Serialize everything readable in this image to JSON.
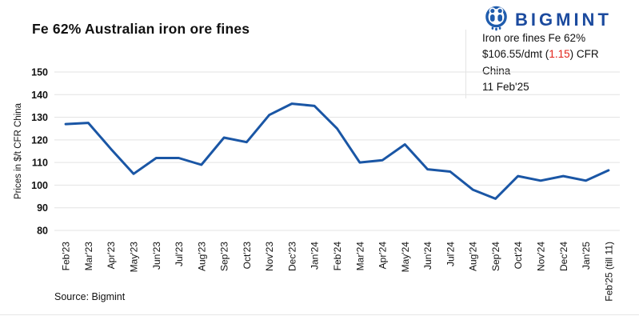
{
  "header": {
    "title": "Fe 62% Australian iron ore fines",
    "logo_text": "BIGMINT",
    "annotation": {
      "line1": "Iron ore fines Fe 62%",
      "price_prefix": "$106.55/dmt (",
      "price_change": "1.15",
      "price_suffix": ") CFR China",
      "date": "11 Feb'25"
    }
  },
  "footer": {
    "source": "Source: Bigmint"
  },
  "colors": {
    "line": "#1a56a5",
    "logo_blue": "#1b4a9e",
    "icon_blue": "#1f5cad",
    "change_red": "#e2231a",
    "grid": "#e3e3e3",
    "text": "#111111"
  },
  "chart_data": {
    "type": "line",
    "title": "Fe 62% Australian iron ore fines",
    "xlabel": "",
    "ylabel": "Prices in $/t CFR China",
    "ylim": [
      80,
      150
    ],
    "ytick_step": 10,
    "yticks": [
      80,
      90,
      100,
      110,
      120,
      130,
      140,
      150
    ],
    "grid": "horizontal",
    "legend": "none",
    "categories": [
      "Feb'23",
      "Mar'23",
      "Apr'23",
      "May'23",
      "Jun'23",
      "Jul'23",
      "Aug'23",
      "Sep'23",
      "Oct'23",
      "Nov'23",
      "Dec'23",
      "Jan'24",
      "Feb'24",
      "Mar'24",
      "Apr'24",
      "May'24",
      "Jun'24",
      "Jul'24",
      "Aug'24",
      "Sep'24",
      "Oct'24",
      "Nov'24",
      "Dec'24",
      "Jan'25",
      "Feb'25 (till 11)"
    ],
    "series": [
      {
        "name": "Fe 62% Australian iron ore fines",
        "values": [
          127,
          127.5,
          116,
          105,
          112,
          112,
          109,
          121,
          119,
          131,
          136,
          135,
          125,
          110,
          111,
          118,
          107,
          106,
          98,
          94,
          104,
          102,
          104,
          102,
          106.55
        ]
      }
    ]
  }
}
